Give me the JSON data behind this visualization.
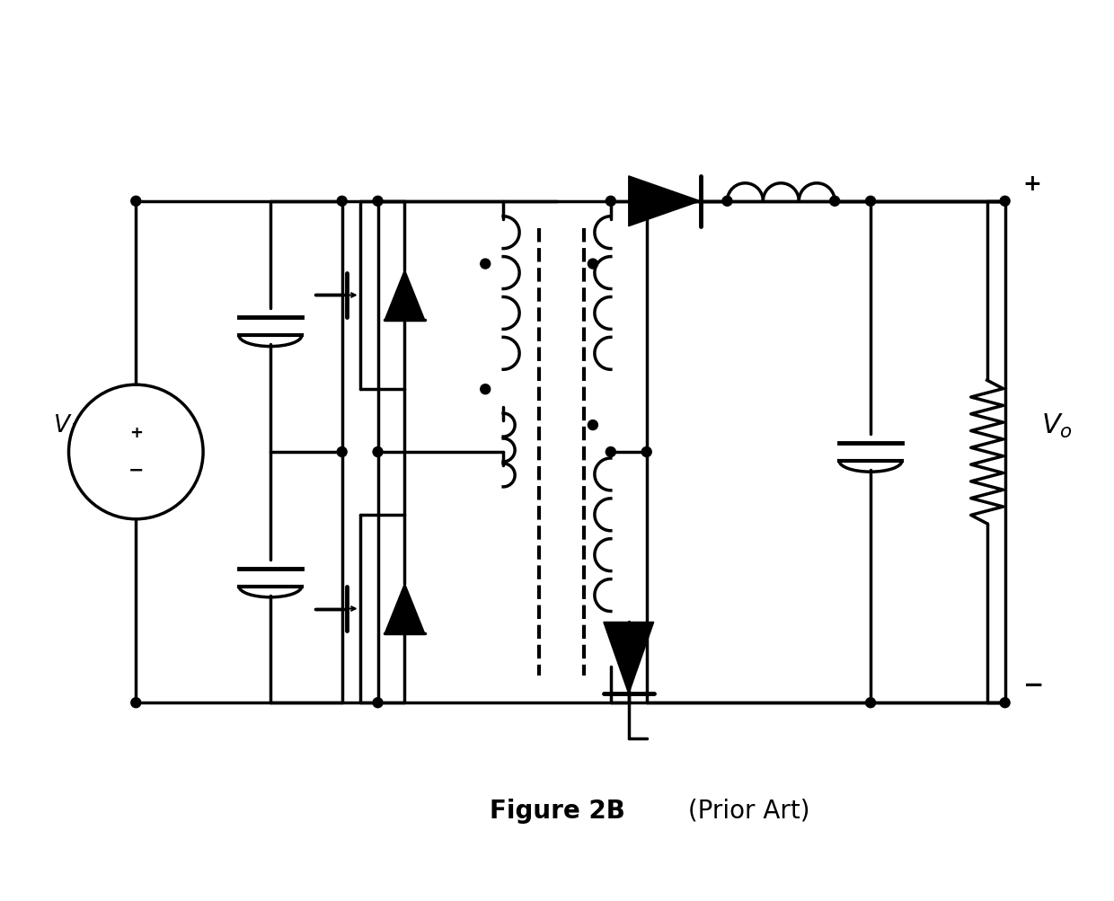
{
  "title": "Figure 2B (Prior Art)",
  "title_bold": "Figure 2B",
  "title_normal": " (Prior Art)",
  "bg_color": "#ffffff",
  "line_color": "#000000",
  "line_width": 2.5,
  "fig_width": 12.4,
  "fig_height": 10.04
}
